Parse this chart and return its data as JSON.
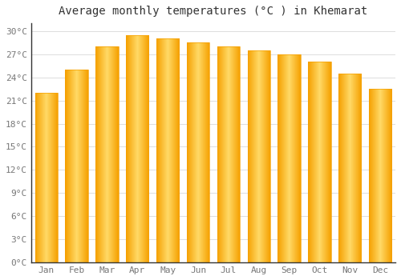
{
  "title": "Average monthly temperatures (°C ) in Khemarat",
  "months": [
    "Jan",
    "Feb",
    "Mar",
    "Apr",
    "May",
    "Jun",
    "Jul",
    "Aug",
    "Sep",
    "Oct",
    "Nov",
    "Dec"
  ],
  "values": [
    22.0,
    25.0,
    28.0,
    29.5,
    29.0,
    28.5,
    28.0,
    27.5,
    27.0,
    26.0,
    24.5,
    22.5
  ],
  "bar_color_light": "#FFD966",
  "bar_color_mid": "#FFC020",
  "bar_color_dark": "#F5A000",
  "background_color": "#FFFFFF",
  "grid_color": "#DDDDDD",
  "text_color": "#777777",
  "spine_color": "#333333",
  "ylim": [
    0,
    31
  ],
  "yticks": [
    0,
    3,
    6,
    9,
    12,
    15,
    18,
    21,
    24,
    27,
    30
  ],
  "title_fontsize": 10,
  "tick_fontsize": 8,
  "title_font": "monospace",
  "tick_font": "monospace",
  "bar_width": 0.75
}
